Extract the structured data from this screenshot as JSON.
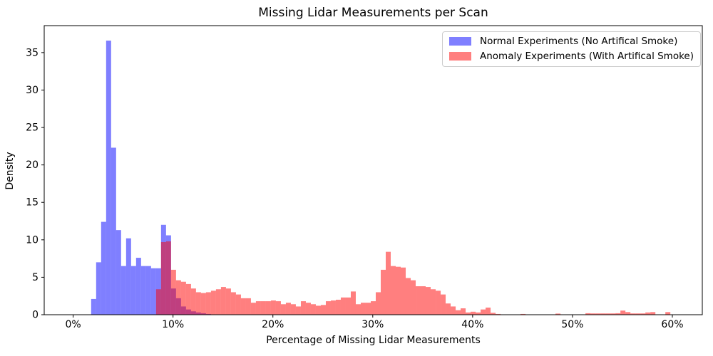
{
  "title": "Missing Lidar Measurements per Scan",
  "axes": {
    "xlabel": "Percentage of Missing Lidar Measurements",
    "ylabel": "Density",
    "x_tick_values": [
      0,
      10,
      20,
      30,
      40,
      50,
      60
    ],
    "x_tick_labels": [
      "0%",
      "10%",
      "20%",
      "30%",
      "40%",
      "50%",
      "60%"
    ],
    "y_tick_values": [
      0,
      5,
      10,
      15,
      20,
      25,
      30,
      35
    ],
    "spine_color": "#000000",
    "grid": "off"
  },
  "legend": {
    "position": "upper right",
    "items": [
      {
        "label": "Normal Experiments (No Artifical Smoke)",
        "color": "rgba(0,0,255,0.5)"
      },
      {
        "label": "Anomaly Experiments (With Artifical Smoke)",
        "color": "rgba(255,0,0,0.5)"
      }
    ]
  },
  "colors": {
    "normal_fill": "rgba(0,0,255,0.5)",
    "anomaly_fill": "rgba(255,0,0,0.5)",
    "normal_on_white": "#8080ff",
    "anomaly_on_white": "#ff8080",
    "overlap": "#bf4080"
  },
  "chart_data": {
    "type": "bar",
    "subtype": "overlaid-density-histogram",
    "title": "Missing Lidar Measurements per Scan",
    "xlabel": "Percentage of Missing Lidar Measurements",
    "ylabel": "Density",
    "xlim": [
      -2.9,
      63.0
    ],
    "ylim": [
      0,
      38.6
    ],
    "bin_width": 0.5,
    "x_units": "percent",
    "legend_position": "upper right",
    "series": [
      {
        "name": "Normal Experiments (No Artifical Smoke)",
        "fill": "rgba(0,0,255,0.5)",
        "bin_start": 1.8,
        "values": [
          2.1,
          7.0,
          12.4,
          36.6,
          22.3,
          11.3,
          6.5,
          10.2,
          6.5,
          7.6,
          6.5,
          6.5,
          6.2,
          6.2,
          12.0,
          10.6,
          3.5,
          2.2,
          1.1,
          0.7,
          0.45,
          0.3,
          0.2,
          0.1
        ]
      },
      {
        "name": "Anomaly Experiments (With Artifical Smoke)",
        "fill": "rgba(255,0,0,0.5)",
        "bin_start": 8.3,
        "values": [
          3.4,
          9.7,
          9.8,
          6.0,
          4.6,
          4.4,
          4.1,
          3.5,
          3.0,
          2.9,
          3.0,
          3.2,
          3.4,
          3.7,
          3.5,
          3.0,
          2.7,
          2.2,
          2.2,
          1.6,
          1.8,
          1.8,
          1.8,
          1.9,
          1.8,
          1.4,
          1.6,
          1.4,
          1.1,
          1.8,
          1.6,
          1.4,
          1.2,
          1.3,
          1.8,
          1.9,
          2.0,
          2.3,
          2.3,
          3.1,
          1.4,
          1.6,
          1.6,
          1.8,
          3.0,
          6.0,
          8.4,
          6.5,
          6.4,
          6.3,
          4.9,
          4.6,
          3.8,
          3.8,
          3.7,
          3.4,
          3.2,
          2.7,
          1.5,
          1.1,
          0.6,
          0.85,
          0.3,
          0.4,
          0.3,
          0.7,
          0.95,
          0.25,
          0.1,
          0,
          0,
          0,
          0,
          0.1,
          0,
          0,
          0,
          0,
          0,
          0,
          0.15,
          0,
          0,
          0,
          0,
          0,
          0.2,
          0.17,
          0.17,
          0.17,
          0.17,
          0.17,
          0.2,
          0.55,
          0.35,
          0.17,
          0.17,
          0.17,
          0.3,
          0.35,
          0,
          0,
          0.35
        ]
      }
    ]
  }
}
